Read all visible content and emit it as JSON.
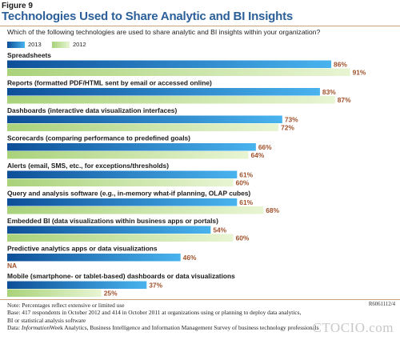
{
  "figure_label": "Figure 9",
  "title": "Technologies Used to Share Analytic and BI Insights",
  "question": "Which of the following technologies are used to share analytic and BI insights within your organization?",
  "legend": [
    {
      "label": "2013",
      "color": "#1f7fc9"
    },
    {
      "label": "2012",
      "color": "#c5e1a1"
    }
  ],
  "chart_data": {
    "type": "bar",
    "orientation": "horizontal",
    "xlim": [
      0,
      100
    ],
    "grid": false,
    "legend_position": "top-left",
    "value_suffix": "%",
    "categories": [
      "Spreadsheets",
      "Reports (formatted PDF/HTML sent by email or accessed online)",
      "Dashboards (interactive data visualization interfaces)",
      "Scorecards (comparing performance to predefined goals)",
      "Alerts (email, SMS, etc., for exceptions/thresholds)",
      "Query and analysis software (e.g., in-memory what-if planning, OLAP cubes)",
      "Embedded BI (data visualizations within business apps or portals)",
      "Predictive analytics apps or data visualizations",
      "Mobile (smartphone- or tablet-based) dashboards or data visualizations"
    ],
    "series": [
      {
        "name": "2013",
        "values": [
          86,
          83,
          73,
          66,
          61,
          61,
          54,
          46,
          37
        ]
      },
      {
        "name": "2012",
        "values": [
          91,
          87,
          72,
          64,
          60,
          68,
          60,
          null,
          25
        ]
      }
    ],
    "na_label": "NA"
  },
  "colors": {
    "bar_2013_dark": "#0d4f98",
    "bar_2013_light": "#49b3ee",
    "bar_2012_dark": "#a9d27a",
    "bar_2012_light": "#e8f5d3",
    "value_label": "#a0502a",
    "title": "#2a5f99"
  },
  "notes": [
    "Note: Percentages reflect extensive or limited use",
    "Base: 417 respondents in October 2012 and 414 in October 2011 at organizations using or planning to deploy data analytics, BI or statistical analysis software",
    "Data: InformationWeek Analytics, Business Intelligence and Information Management Survey of business technology professionals"
  ],
  "report_code": "R6061112/4",
  "watermark": "CTOCIO.com"
}
